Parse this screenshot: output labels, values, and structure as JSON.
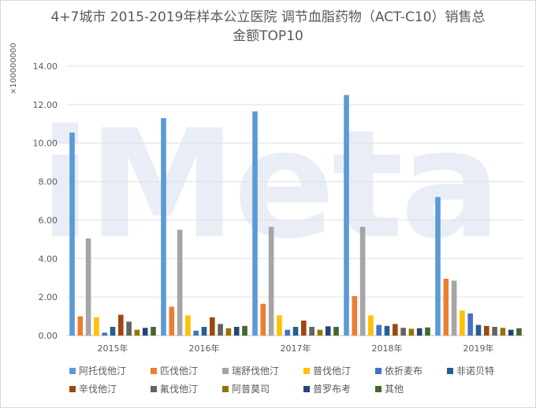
{
  "title": "4+7城市 2015-2019年样本公立医院 调节血脂药物（ACT-C10）销售总金额TOP10",
  "watermark": "iMeta",
  "chart_data": {
    "type": "bar",
    "title": "4+7城市 2015-2019年样本公立医院 调节血脂药物（ACT-C10）销售总金额TOP10",
    "unit_label": "×100000000",
    "categories": [
      "2015年",
      "2016年",
      "2017年",
      "2018年",
      "2019年"
    ],
    "ylim": [
      0,
      14
    ],
    "yticks": [
      "0.00",
      "2.00",
      "4.00",
      "6.00",
      "8.00",
      "10.00",
      "12.00",
      "14.00"
    ],
    "grid": true,
    "legend_position": "bottom",
    "series": [
      {
        "name": "阿托伐他汀",
        "color": "#5b9bd5",
        "values": [
          10.55,
          11.3,
          11.65,
          12.5,
          7.2
        ]
      },
      {
        "name": "匹伐他汀",
        "color": "#ed7d31",
        "values": [
          1.0,
          1.5,
          1.65,
          2.05,
          2.95
        ]
      },
      {
        "name": "瑞舒伐他汀",
        "color": "#a5a5a5",
        "values": [
          5.05,
          5.5,
          5.65,
          5.65,
          2.85
        ]
      },
      {
        "name": "普伐他汀",
        "color": "#ffc000",
        "values": [
          0.95,
          1.05,
          1.05,
          1.05,
          1.3
        ]
      },
      {
        "name": "依折麦布",
        "color": "#4472c4",
        "values": [
          0.15,
          0.25,
          0.3,
          0.55,
          1.15
        ]
      },
      {
        "name": "非诺贝特",
        "color": "#255e91",
        "values": [
          0.45,
          0.45,
          0.45,
          0.5,
          0.55
        ]
      },
      {
        "name": "辛伐他汀",
        "color": "#9e480e",
        "values": [
          1.08,
          0.95,
          0.78,
          0.6,
          0.5
        ]
      },
      {
        "name": "氟伐他汀",
        "color": "#636363",
        "values": [
          0.72,
          0.6,
          0.45,
          0.4,
          0.45
        ]
      },
      {
        "name": "阿普莫司",
        "color": "#997300",
        "values": [
          0.3,
          0.38,
          0.3,
          0.35,
          0.4
        ]
      },
      {
        "name": "普罗布考",
        "color": "#264478",
        "values": [
          0.4,
          0.45,
          0.48,
          0.38,
          0.3
        ]
      },
      {
        "name": "其他",
        "color": "#43682b",
        "values": [
          0.45,
          0.5,
          0.45,
          0.42,
          0.38
        ]
      }
    ]
  }
}
